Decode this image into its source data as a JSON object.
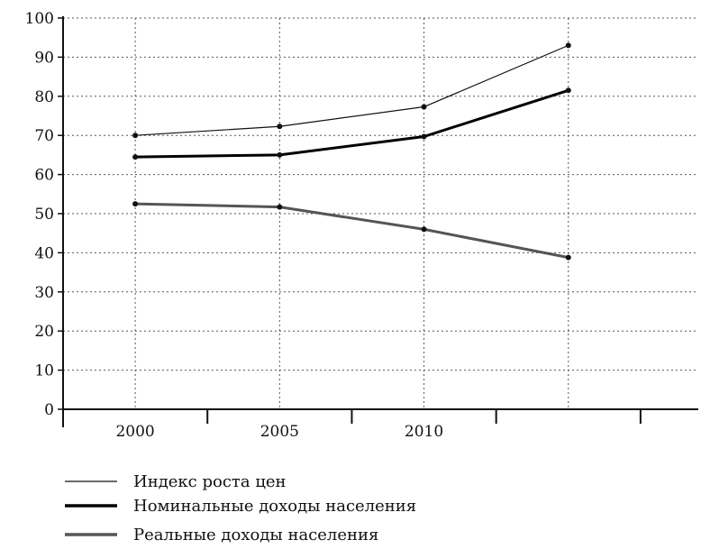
{
  "chart_data": {
    "type": "line",
    "title": "",
    "xlabel": "",
    "ylabel": "",
    "x": [
      2000,
      2005,
      2010,
      2015
    ],
    "x_tick_labels": [
      "2000",
      "2005",
      "2010"
    ],
    "xlim": [
      1997.5,
      2019.5
    ],
    "ylim": [
      0,
      100
    ],
    "y_ticks": [
      0,
      10,
      20,
      30,
      40,
      50,
      60,
      70,
      80,
      90,
      100
    ],
    "grid": true,
    "legend_placement": "bottom-left",
    "series": [
      {
        "name": "Индекс роста цен",
        "values": [
          70,
          72.3,
          77.3,
          93
        ],
        "color": "#111111",
        "weight": "thin"
      },
      {
        "name": "Номинальные доходы населения",
        "values": [
          64.5,
          65,
          69.7,
          81.5
        ],
        "color": "#000000",
        "weight": "bold"
      },
      {
        "name": "Реальные доходы населения",
        "values": [
          52.5,
          51.7,
          46,
          38.8
        ],
        "color": "#555555",
        "weight": "bold"
      }
    ]
  }
}
